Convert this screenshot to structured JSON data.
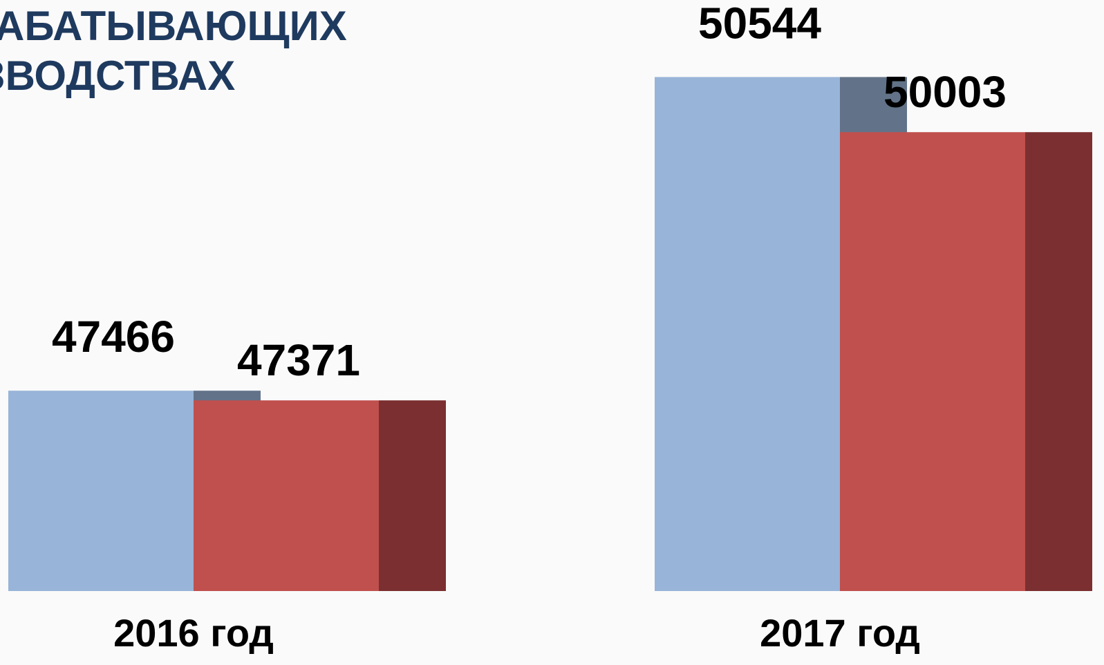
{
  "chart_data": {
    "type": "bar3d",
    "title_lines": [
      "АБАТЫВАЮЩИХ",
      "ЗВОДСТВАХ"
    ],
    "categories": [
      "2016 год",
      "2017 год"
    ],
    "series": [
      {
        "color": "#98b4d8",
        "side_color": "#627389",
        "values": [
          47466,
          50544
        ]
      },
      {
        "color": "#c0504d",
        "side_color": "#7b2f30",
        "values": [
          47371,
          50003
        ]
      }
    ],
    "ylim": [
      45500,
      51300
    ]
  }
}
